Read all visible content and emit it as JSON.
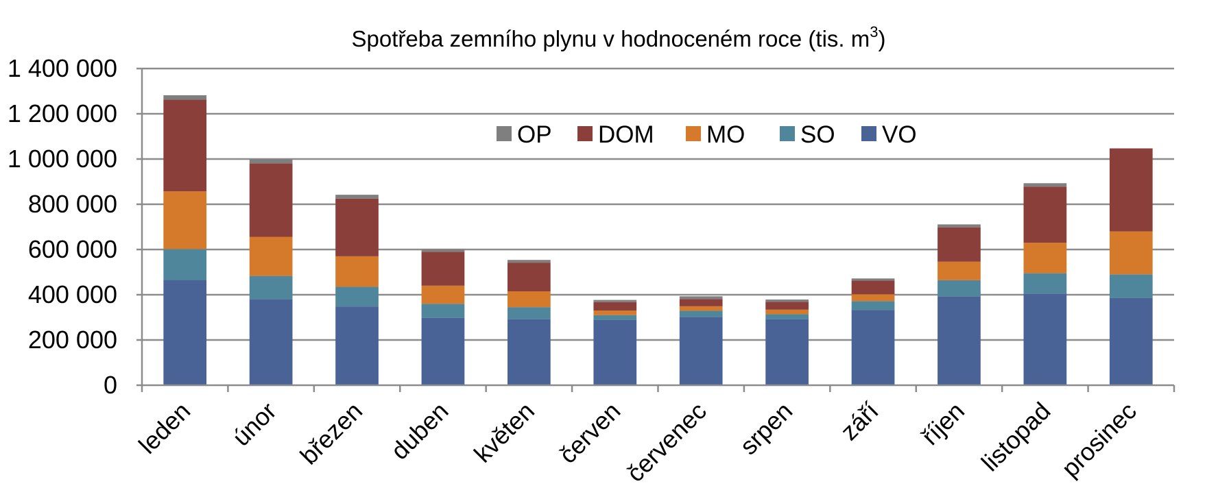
{
  "chart_data": {
    "type": "bar",
    "stacked": true,
    "title": "Spotřeba zemního plynu v hodnoceném roce (tis. m",
    "title_superscript": "3",
    "title_suffix": ")",
    "xlabel": "",
    "ylabel": "",
    "ylim": [
      0,
      1400000
    ],
    "ytick_values": [
      0,
      200000,
      400000,
      600000,
      800000,
      1000000,
      1200000,
      1400000
    ],
    "ytick_labels": [
      "0",
      "200 000",
      "400 000",
      "600 000",
      "800 000",
      "1 000 000",
      "1 200 000",
      "1 400 000"
    ],
    "categories": [
      "leden",
      "únor",
      "březen",
      "duben",
      "květen",
      "červen",
      "červenec",
      "srpen",
      "září",
      "říjen",
      "listopad",
      "prosinec"
    ],
    "grid": true,
    "legend_position": "top-center",
    "series": [
      {
        "name": "VO",
        "color": "#4a6396",
        "values": [
          465000,
          380000,
          348000,
          298000,
          292000,
          288000,
          302000,
          292000,
          332000,
          393000,
          405000,
          385000
        ]
      },
      {
        "name": "SO",
        "color": "#4f869b",
        "values": [
          137000,
          103000,
          87000,
          62000,
          53000,
          22000,
          27000,
          22000,
          40000,
          71000,
          90000,
          105000
        ]
      },
      {
        "name": "MO",
        "color": "#d5792b",
        "values": [
          255000,
          173000,
          135000,
          80000,
          70000,
          20000,
          20000,
          20000,
          30000,
          82000,
          135000,
          190000
        ]
      },
      {
        "name": "DOM",
        "color": "#8b3f3a",
        "values": [
          405000,
          325000,
          255000,
          150000,
          127000,
          37000,
          32000,
          35000,
          60000,
          152000,
          248000,
          367000
        ]
      },
      {
        "name": "OP",
        "color": "#7f7f7f",
        "values": [
          20000,
          18000,
          17000,
          12000,
          12000,
          10000,
          12000,
          10000,
          10000,
          13000,
          15000,
          0
        ]
      }
    ],
    "legend_order": [
      "OP",
      "DOM",
      "MO",
      "SO",
      "VO"
    ]
  }
}
